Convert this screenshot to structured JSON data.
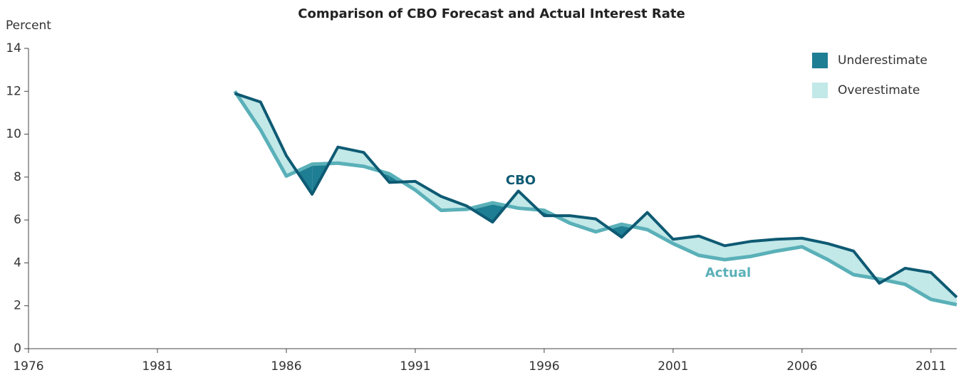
{
  "chart_data": {
    "type": "line",
    "title": "Comparison of CBO Forecast and Actual Interest Rate",
    "y_label": "Percent",
    "x": [
      1984,
      1985,
      1986,
      1987,
      1988,
      1989,
      1990,
      1991,
      1992,
      1993,
      1994,
      1995,
      1996,
      1997,
      1998,
      1999,
      2000,
      2001,
      2002,
      2003,
      2004,
      2005,
      2006,
      2007,
      2008,
      2009,
      2010,
      2011,
      2012
    ],
    "series": [
      {
        "name": "CBO",
        "color": "#0e5a73",
        "values": [
          11.9,
          11.5,
          9.0,
          7.2,
          9.4,
          9.15,
          7.75,
          7.8,
          7.1,
          6.65,
          5.9,
          7.35,
          6.2,
          6.2,
          6.05,
          5.2,
          6.35,
          5.1,
          5.25,
          4.8,
          5.0,
          5.1,
          5.15,
          4.9,
          4.55,
          3.05,
          3.75,
          3.55,
          2.4
        ]
      },
      {
        "name": "Actual",
        "color": "#5ab0b8",
        "values": [
          12.0,
          10.2,
          8.05,
          8.6,
          8.65,
          8.5,
          8.15,
          7.4,
          6.45,
          6.5,
          6.8,
          6.55,
          6.45,
          5.85,
          5.45,
          5.8,
          5.55,
          4.9,
          4.35,
          4.15,
          4.3,
          4.55,
          4.75,
          4.15,
          3.45,
          3.25,
          3.0,
          2.3,
          2.05
        ]
      }
    ],
    "fills": [
      {
        "name": "Underestimate",
        "color": "#1e7e93"
      },
      {
        "name": "Overestimate",
        "color": "#c2e8e8"
      }
    ],
    "xlim": [
      1976,
      2012
    ],
    "xticks": [
      1976,
      1981,
      1986,
      1991,
      1996,
      2001,
      2006,
      2011
    ],
    "ylim": [
      0,
      14
    ],
    "yticks": [
      0,
      2,
      4,
      6,
      8,
      10,
      12,
      14
    ]
  }
}
